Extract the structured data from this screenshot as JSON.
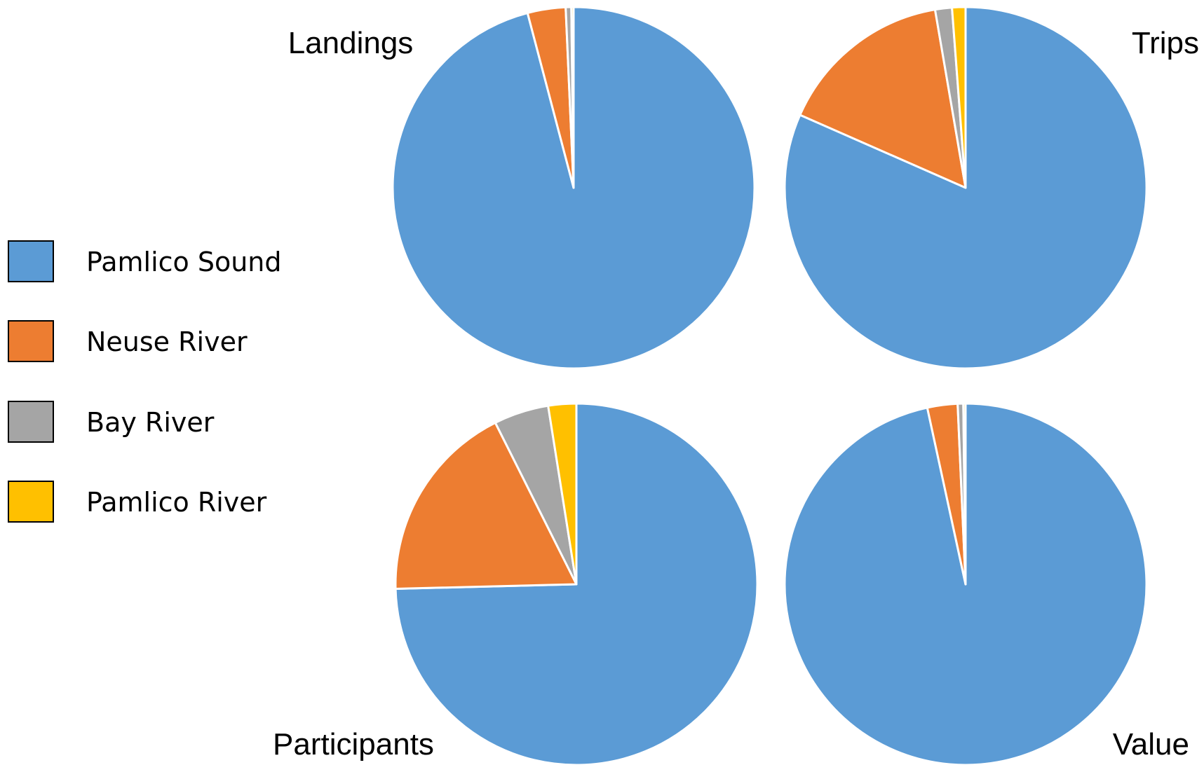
{
  "legend": {
    "items": [
      {
        "label": "Pamlico Sound",
        "color": "#5B9BD5"
      },
      {
        "label": "Neuse River",
        "color": "#ED7D31"
      },
      {
        "label": "Bay River",
        "color": "#A5A5A5"
      },
      {
        "label": "Pamlico River",
        "color": "#FFC000"
      }
    ]
  },
  "chart_data": [
    {
      "type": "pie",
      "title": "Landings",
      "categories": [
        "Pamlico Sound",
        "Neuse River",
        "Bay River",
        "Pamlico River"
      ],
      "values": [
        95.9,
        3.4,
        0.5,
        0.2
      ]
    },
    {
      "type": "pie",
      "title": "Trips",
      "categories": [
        "Pamlico Sound",
        "Neuse River",
        "Bay River",
        "Pamlico River"
      ],
      "values": [
        81.6,
        15.7,
        1.5,
        1.2
      ]
    },
    {
      "type": "pie",
      "title": "Participants",
      "categories": [
        "Pamlico Sound",
        "Neuse River",
        "Bay River",
        "Pamlico River"
      ],
      "values": [
        74.6,
        18.0,
        4.9,
        2.5
      ]
    },
    {
      "type": "pie",
      "title": "Value",
      "categories": [
        "Pamlico Sound",
        "Neuse River",
        "Bay River",
        "Pamlico River"
      ],
      "values": [
        96.6,
        2.7,
        0.5,
        0.2
      ]
    }
  ]
}
